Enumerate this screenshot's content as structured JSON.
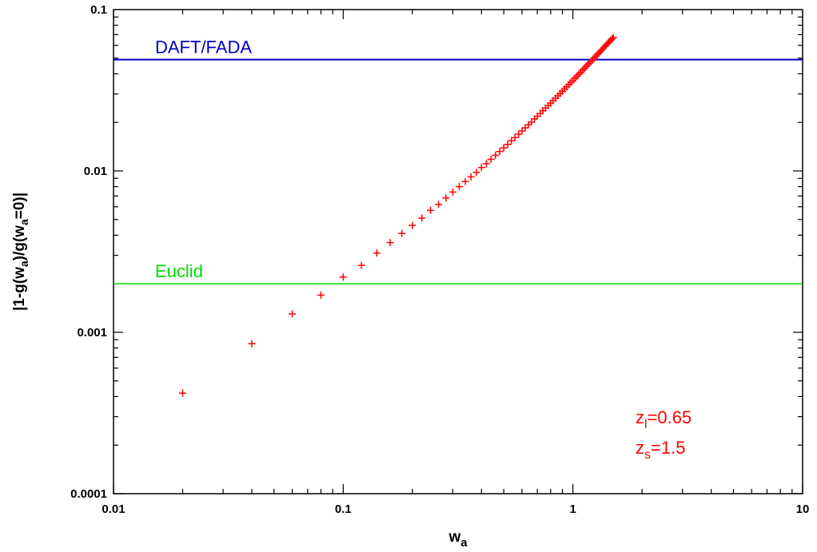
{
  "chart_data": {
    "type": "scatter",
    "title": "",
    "xlabel": {
      "base": "w",
      "sub": "a"
    },
    "ylabel": {
      "parts": [
        "|1-g(w",
        "a",
        ")/g(w",
        "a",
        "=0)|"
      ]
    },
    "xscale": "log",
    "yscale": "log",
    "xlim": [
      0.01,
      10
    ],
    "ylim": [
      0.0001,
      0.1
    ],
    "xticks": [
      0.01,
      0.1,
      1,
      10
    ],
    "xtick_labels": [
      "0.01",
      "0.1",
      "1",
      "10"
    ],
    "yticks": [
      0.0001,
      0.001,
      0.01,
      0.1
    ],
    "ytick_labels": [
      "0.0001",
      "0.001",
      "0.01",
      "0.1"
    ],
    "grid": false,
    "reference_lines": [
      {
        "label": "DAFT/FADA",
        "y": 0.049,
        "color": "#0000cc"
      },
      {
        "label": "Euclid",
        "y": 0.002,
        "color": "#00dd00"
      }
    ],
    "series": [
      {
        "marker": "+",
        "color": "#ff0000",
        "x": [
          0.02,
          0.04,
          0.06,
          0.08,
          0.1,
          0.12,
          0.14,
          0.16,
          0.18,
          0.2,
          0.22,
          0.24,
          0.26,
          0.28,
          0.3,
          0.32,
          0.34,
          0.36,
          0.38,
          0.4,
          0.42,
          0.44,
          0.46,
          0.48,
          0.5,
          0.52,
          0.54,
          0.56,
          0.58,
          0.6,
          0.62,
          0.64,
          0.66,
          0.68,
          0.7,
          0.72,
          0.74,
          0.76,
          0.78,
          0.8,
          0.82,
          0.84,
          0.86,
          0.88,
          0.9,
          0.92,
          0.94,
          0.96,
          0.98,
          1.0,
          1.02,
          1.04,
          1.06,
          1.08,
          1.1,
          1.12,
          1.14,
          1.16,
          1.18,
          1.2,
          1.22,
          1.24,
          1.26,
          1.28,
          1.3,
          1.32,
          1.34,
          1.36,
          1.38,
          1.4,
          1.42,
          1.44,
          1.46,
          1.48,
          1.5
        ],
        "y": [
          0.00042,
          0.00085,
          0.0013,
          0.0017,
          0.0022,
          0.0026,
          0.0031,
          0.0036,
          0.0041,
          0.0046,
          0.0051,
          0.0057,
          0.0062,
          0.0068,
          0.0074,
          0.008,
          0.0086,
          0.0092,
          0.0098,
          0.0105,
          0.0111,
          0.0118,
          0.0125,
          0.0132,
          0.0139,
          0.0146,
          0.0154,
          0.0161,
          0.0169,
          0.0177,
          0.0185,
          0.0193,
          0.0201,
          0.021,
          0.0218,
          0.0227,
          0.0236,
          0.0245,
          0.0254,
          0.0263,
          0.0273,
          0.0282,
          0.0292,
          0.0302,
          0.0312,
          0.0322,
          0.0332,
          0.0343,
          0.0354,
          0.0364,
          0.0375,
          0.0386,
          0.0397,
          0.0408,
          0.042,
          0.0431,
          0.0443,
          0.0455,
          0.0466,
          0.0478,
          0.0491,
          0.0503,
          0.0515,
          0.0528,
          0.054,
          0.0553,
          0.0566,
          0.0579,
          0.0592,
          0.0605,
          0.0618,
          0.0631,
          0.0645,
          0.0658,
          0.0672
        ]
      }
    ],
    "annotations": [
      {
        "base": "z",
        "sub": "l",
        "text": "=0.65",
        "color": "#ff0000"
      },
      {
        "base": "z",
        "sub": "s",
        "text": "=1.5",
        "color": "#ff0000"
      }
    ]
  }
}
